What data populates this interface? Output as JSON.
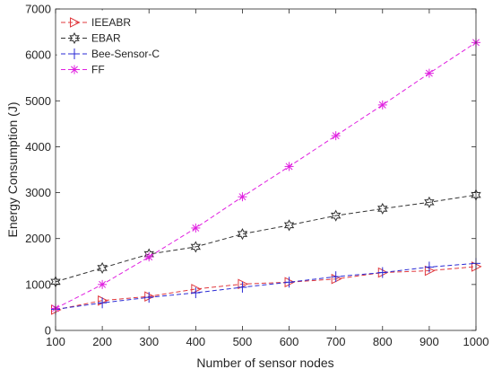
{
  "chart_data": {
    "type": "line",
    "xlabel": "Number of sensor nodes",
    "ylabel": "Energy Consumption (J)",
    "x": [
      100,
      200,
      300,
      400,
      500,
      600,
      700,
      800,
      900,
      1000
    ],
    "xlim": [
      100,
      1000
    ],
    "ylim": [
      0,
      7000
    ],
    "xticks": [
      100,
      200,
      300,
      400,
      500,
      600,
      700,
      800,
      900,
      1000
    ],
    "yticks": [
      0,
      1000,
      2000,
      3000,
      4000,
      5000,
      6000,
      7000
    ],
    "grid": false,
    "legend_position": "top-left",
    "series": [
      {
        "name": "IEEABR",
        "color": "#e0393e",
        "marker": "triangle-right",
        "line_style": "dashed",
        "values": [
          450,
          650,
          740,
          900,
          1010,
          1050,
          1120,
          1260,
          1300,
          1390
        ]
      },
      {
        "name": "EBAR",
        "color": "#333333",
        "marker": "hexagram",
        "line_style": "dashed",
        "values": [
          1060,
          1360,
          1660,
          1820,
          2100,
          2290,
          2500,
          2650,
          2790,
          2950
        ]
      },
      {
        "name": "Bee-Sensor-C",
        "color": "#2a2ad4",
        "marker": "plus",
        "line_style": "dashed",
        "values": [
          460,
          600,
          720,
          820,
          940,
          1050,
          1170,
          1260,
          1380,
          1460
        ]
      },
      {
        "name": "FF",
        "color": "#e020e0",
        "marker": "asterisk",
        "line_style": "dashed",
        "values": [
          480,
          1000,
          1600,
          2230,
          2910,
          3570,
          4240,
          4910,
          5600,
          6270
        ]
      }
    ]
  }
}
